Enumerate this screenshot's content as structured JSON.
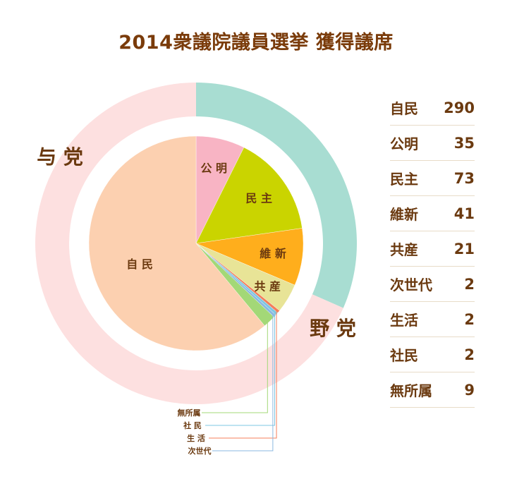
{
  "title": "2014衆議院議員選挙 獲得議席",
  "chart_data": {
    "type": "pie",
    "title": "2014衆議院議員選挙 獲得議席",
    "slices": [
      {
        "label": "自民",
        "value": 290,
        "color": "#fcd0b0",
        "slice_label": "自 民"
      },
      {
        "label": "公明",
        "value": 35,
        "color": "#f8b4c4",
        "slice_label": "公 明"
      },
      {
        "label": "民主",
        "value": 73,
        "color": "#cad400",
        "slice_label": "民 主"
      },
      {
        "label": "維新",
        "value": 41,
        "color": "#ffae1c",
        "slice_label": "維 新"
      },
      {
        "label": "共産",
        "value": 21,
        "color": "#e8e497",
        "slice_label": "共 産"
      },
      {
        "label": "次世代",
        "value": 2,
        "color": "#8bb8e0",
        "slice_label": "次世代"
      },
      {
        "label": "生活",
        "value": 2,
        "color": "#f47f5b",
        "slice_label": "生 活"
      },
      {
        "label": "社民",
        "value": 2,
        "color": "#7dc7e3",
        "slice_label": "社 民"
      },
      {
        "label": "無所属",
        "value": 9,
        "color": "#a3d877",
        "slice_label": "無所属"
      }
    ],
    "outer_ring": [
      {
        "label": "与 党",
        "value": 325,
        "color": "#fde0e0"
      },
      {
        "label": "野 党",
        "value": 150,
        "color": "#a8ddd2"
      }
    ]
  },
  "seat_table": [
    {
      "name": "自民",
      "seats": "290"
    },
    {
      "name": "公明",
      "seats": "35"
    },
    {
      "name": "民主",
      "seats": "73"
    },
    {
      "name": "維新",
      "seats": "41"
    },
    {
      "name": "共産",
      "seats": "21"
    },
    {
      "name": "次世代",
      "seats": "2"
    },
    {
      "name": "生活",
      "seats": "2"
    },
    {
      "name": "社民",
      "seats": "2"
    },
    {
      "name": "無所属",
      "seats": "9"
    }
  ]
}
